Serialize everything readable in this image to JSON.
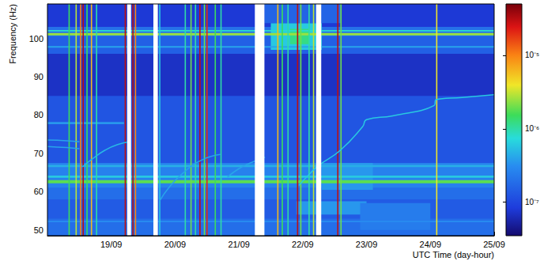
{
  "chart_data": {
    "type": "heatmap",
    "y_label": "Frequency (Hz)",
    "x_label": "UTC Time (day-hour)",
    "xlim": [
      18,
      25
    ],
    "xticks": [
      {
        "value": 19,
        "label": "19/09"
      },
      {
        "value": 20,
        "label": "20/09"
      },
      {
        "value": 21,
        "label": "21/09"
      },
      {
        "value": 22,
        "label": "22/09"
      },
      {
        "value": 23,
        "label": "23/09"
      },
      {
        "value": 24,
        "label": "24/09"
      },
      {
        "value": 25,
        "label": "25/09"
      }
    ],
    "ylim": [
      48.5,
      109
    ],
    "yticks": [
      50,
      60,
      70,
      80,
      90,
      100
    ],
    "colorbar": {
      "log": true,
      "range": [
        3.5e-08,
        5e-05
      ],
      "ticks": [
        {
          "value": 1e-07,
          "label": "10⁻⁷"
        },
        {
          "value": 1e-06,
          "label": "10⁻⁶"
        },
        {
          "value": 1e-05,
          "label": "10⁻⁵"
        }
      ]
    },
    "cells": [
      [
        18,
        25,
        48.5,
        109,
        1.3e-07
      ],
      [
        18,
        25,
        48.5,
        53,
        1.9e-07
      ],
      [
        18,
        25,
        53,
        58,
        1.4e-07
      ],
      [
        18,
        25,
        58,
        61,
        1.9e-07
      ],
      [
        18,
        25,
        61,
        67.5,
        2.6e-07
      ],
      [
        18,
        25,
        67.5,
        85,
        1.25e-07
      ],
      [
        18,
        25,
        85,
        96,
        7e-08
      ],
      [
        18,
        25,
        96,
        100.5,
        1.5e-07
      ],
      [
        18,
        25,
        100.5,
        103,
        2e-07
      ],
      [
        18,
        25,
        103,
        109,
        8e-08
      ],
      [
        21.5,
        22.3,
        97,
        104,
        6e-07
      ],
      [
        21.8,
        22.1,
        98.5,
        102.5,
        1.2e-06
      ],
      [
        21.4,
        22.6,
        104,
        109,
        1.6e-07
      ],
      [
        21.9,
        23.0,
        54,
        57.5,
        3.5e-07
      ],
      [
        22.9,
        24.0,
        50,
        57,
        2.4e-07
      ],
      [
        22.3,
        23.1,
        60.5,
        67.5,
        3.5e-07
      ],
      [
        18,
        25,
        62.2,
        63,
        1.8e-06
      ],
      [
        18,
        25,
        63.6,
        64.2,
        6e-07
      ],
      [
        18,
        25,
        66.4,
        67,
        4.5e-07
      ],
      [
        18,
        25,
        100.8,
        101.4,
        2.5e-06
      ],
      [
        18,
        25,
        101.8,
        102.2,
        8e-07
      ],
      [
        18,
        25,
        97.6,
        98,
        4e-07
      ],
      [
        18,
        19.2,
        77.6,
        78.2,
        3.5e-07
      ],
      [
        18,
        25,
        52,
        52.4,
        3e-07
      ],
      [
        18.33,
        18.35,
        48.5,
        109,
        1.5e-06
      ],
      [
        18.44,
        18.46,
        48.5,
        109,
        3e-06
      ],
      [
        18.51,
        18.53,
        48.5,
        109,
        1e-05
      ],
      [
        18.55,
        18.57,
        48.5,
        109,
        3e-05
      ],
      [
        18.61,
        18.63,
        48.5,
        109,
        1.5e-06
      ],
      [
        18.68,
        18.7,
        48.5,
        109,
        6e-06
      ],
      [
        18.76,
        18.78,
        48.5,
        109,
        1e-06
      ],
      [
        19.21,
        19.23,
        48.5,
        109,
        3e-05
      ],
      [
        19.33,
        19.35,
        48.5,
        109,
        3e-05
      ],
      [
        19.37,
        19.39,
        48.5,
        109,
        1e-05
      ],
      [
        19.75,
        19.77,
        48.5,
        109,
        6e-07
      ],
      [
        20.15,
        20.17,
        48.5,
        109,
        1e-06
      ],
      [
        20.24,
        20.26,
        48.5,
        109,
        2e-06
      ],
      [
        20.31,
        20.33,
        48.5,
        109,
        1e-06
      ],
      [
        20.38,
        20.4,
        48.5,
        109,
        3e-05
      ],
      [
        20.45,
        20.47,
        48.5,
        109,
        2e-06
      ],
      [
        20.49,
        20.51,
        48.5,
        109,
        2e-05
      ],
      [
        20.62,
        20.64,
        48.5,
        109,
        1.5e-06
      ],
      [
        20.71,
        20.73,
        48.5,
        109,
        1e-06
      ],
      [
        21.6,
        21.62,
        48.5,
        109,
        6e-06
      ],
      [
        21.67,
        21.69,
        48.5,
        109,
        1.5e-06
      ],
      [
        21.76,
        21.78,
        48.5,
        109,
        1e-06
      ],
      [
        21.91,
        21.93,
        48.5,
        109,
        3e-05
      ],
      [
        21.96,
        21.98,
        48.5,
        109,
        2e-06
      ],
      [
        22.09,
        22.11,
        48.5,
        109,
        1e-06
      ],
      [
        22.16,
        22.18,
        48.5,
        109,
        3e-06
      ],
      [
        22.54,
        22.56,
        48.5,
        109,
        3e-05
      ],
      [
        22.59,
        22.61,
        48.5,
        109,
        2e-06
      ],
      [
        24.09,
        24.11,
        48.5,
        109,
        4e-06
      ]
    ],
    "lines": [
      {
        "value": 4e-07,
        "points": [
          [
            18,
            73.5
          ],
          [
            18.3,
            73.3
          ],
          [
            18.5,
            73
          ]
        ]
      },
      {
        "value": 4e-07,
        "points": [
          [
            18,
            71.8
          ],
          [
            18.3,
            71.5
          ],
          [
            18.5,
            71.2
          ]
        ]
      },
      {
        "value": 5e-07,
        "points": [
          [
            18.55,
            66.5
          ],
          [
            18.7,
            68.5
          ],
          [
            18.9,
            70.8
          ],
          [
            19.1,
            72.3
          ],
          [
            19.3,
            73
          ]
        ]
      },
      {
        "value": 4e-07,
        "points": [
          [
            19.76,
            57.6
          ],
          [
            19.9,
            61
          ],
          [
            20.12,
            64.8
          ],
          [
            20.41,
            68.2
          ],
          [
            20.71,
            69.7
          ]
        ]
      },
      {
        "value": 4e-07,
        "points": [
          [
            20.82,
            63.8
          ],
          [
            21.0,
            66
          ],
          [
            21.18,
            67.5
          ],
          [
            21.41,
            69
          ]
        ]
      },
      {
        "value": 6e-07,
        "points": [
          [
            21.94,
            61.6
          ],
          [
            22.1,
            64.5
          ],
          [
            22.24,
            66.7
          ],
          [
            22.59,
            70.8
          ],
          [
            22.94,
            77
          ],
          [
            23.0,
            78.8
          ],
          [
            23.41,
            79.8
          ],
          [
            24.06,
            82.5
          ],
          [
            24.09,
            84
          ],
          [
            24.5,
            84.6
          ],
          [
            25,
            85.3
          ]
        ]
      }
    ],
    "gaps": [
      [
        19.25,
        19.31
      ],
      [
        19.66,
        19.73
      ],
      [
        21.25,
        21.4
      ],
      [
        22.21,
        22.29
      ]
    ]
  }
}
